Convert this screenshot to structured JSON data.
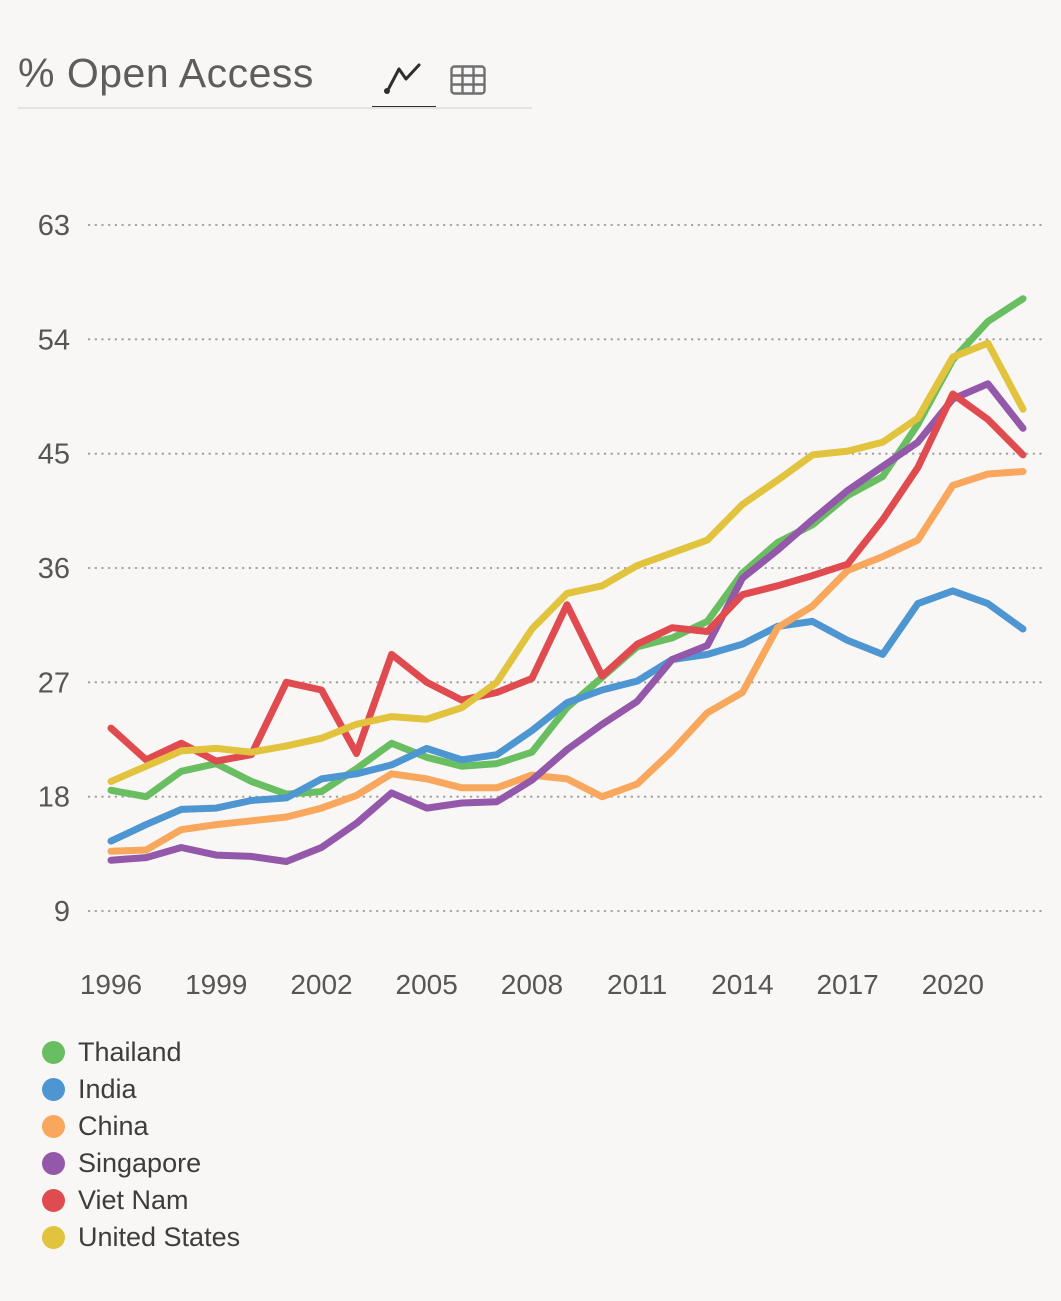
{
  "header": {
    "title": "% Open Access",
    "tabs": [
      {
        "name": "line-chart-view",
        "icon": "line-chart-icon",
        "active": true
      },
      {
        "name": "table-view",
        "icon": "table-icon",
        "active": false
      }
    ]
  },
  "colors": {
    "background": "#f8f7f5",
    "gridline": "#9c9c9c",
    "axis_label": "#565656",
    "title_text": "#5d5d5d",
    "legend_text": "#3d3d3d",
    "active_tab_underline": "#2e2e2e",
    "icon_gray": "#6f6f6f"
  },
  "chart_data": {
    "type": "line",
    "title": "% Open Access",
    "xlabel": "",
    "ylabel": "",
    "x": [
      1996,
      1997,
      1998,
      1999,
      2000,
      2001,
      2002,
      2003,
      2004,
      2005,
      2006,
      2007,
      2008,
      2009,
      2010,
      2011,
      2012,
      2013,
      2014,
      2015,
      2016,
      2017,
      2018,
      2019,
      2020,
      2021,
      2022
    ],
    "x_tick_labels": [
      "1996",
      "1999",
      "2002",
      "2005",
      "2008",
      "2011",
      "2014",
      "2017",
      "2020"
    ],
    "y_ticks": [
      9,
      18,
      27,
      36,
      45,
      54,
      63
    ],
    "ylim": [
      9,
      63
    ],
    "grid": "horizontal-dotted",
    "legend_position": "bottom-left",
    "series": [
      {
        "name": "Thailand",
        "color": "#6abe62",
        "values": [
          18.5,
          18.0,
          20.0,
          20.6,
          19.2,
          18.2,
          18.4,
          20.2,
          22.2,
          21.1,
          20.4,
          20.6,
          21.5,
          25.0,
          27.4,
          29.8,
          30.5,
          31.8,
          35.6,
          38.0,
          39.4,
          41.7,
          43.2,
          47.3,
          52.4,
          55.4,
          57.2
        ]
      },
      {
        "name": "India",
        "color": "#4e96d2",
        "values": [
          14.5,
          15.8,
          17.0,
          17.1,
          17.7,
          17.9,
          19.4,
          19.8,
          20.5,
          21.8,
          20.9,
          21.3,
          23.2,
          25.4,
          26.4,
          27.1,
          28.8,
          29.2,
          30.0,
          31.4,
          31.8,
          30.3,
          29.2,
          33.2,
          34.2,
          33.2,
          31.2
        ]
      },
      {
        "name": "China",
        "color": "#f8a75c",
        "values": [
          13.7,
          13.8,
          15.4,
          15.8,
          16.1,
          16.4,
          17.1,
          18.1,
          19.8,
          19.4,
          18.7,
          18.7,
          19.7,
          19.4,
          18.0,
          19.0,
          21.6,
          24.6,
          26.2,
          31.3,
          33.0,
          35.8,
          36.9,
          38.2,
          42.5,
          43.4,
          43.6
        ]
      },
      {
        "name": "Singapore",
        "color": "#9458aa",
        "values": [
          13.0,
          13.2,
          14.0,
          13.4,
          13.3,
          12.9,
          14.0,
          15.9,
          18.3,
          17.1,
          17.5,
          17.6,
          19.3,
          21.7,
          23.7,
          25.5,
          28.8,
          29.9,
          35.2,
          37.4,
          39.8,
          42.1,
          44.0,
          45.9,
          49.3,
          50.5,
          47.0
        ]
      },
      {
        "name": "Viet Nam",
        "color": "#e04b50",
        "values": [
          23.4,
          20.9,
          22.2,
          20.8,
          21.3,
          27.0,
          26.4,
          21.4,
          29.2,
          27.0,
          25.6,
          26.2,
          27.3,
          33.1,
          27.5,
          30.0,
          31.3,
          31.0,
          33.9,
          34.6,
          35.4,
          36.3,
          39.8,
          43.9,
          49.7,
          47.7,
          44.9
        ]
      },
      {
        "name": "United States",
        "color": "#e2c33d",
        "values": [
          19.2,
          20.4,
          21.6,
          21.8,
          21.5,
          22.0,
          22.6,
          23.7,
          24.3,
          24.1,
          25.0,
          27.0,
          31.2,
          34.0,
          34.6,
          36.2,
          37.2,
          38.2,
          41.0,
          42.9,
          44.9,
          45.2,
          45.9,
          47.8,
          52.6,
          53.7,
          48.5
        ]
      }
    ]
  }
}
